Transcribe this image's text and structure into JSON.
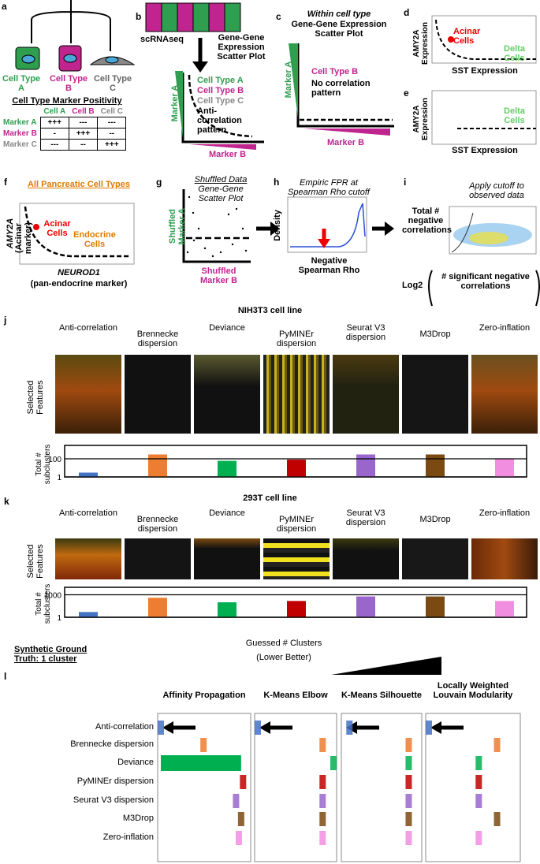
{
  "methods": [
    "Anti-correlation",
    "Brennecke dispersion",
    "Deviance",
    "PyMINEr dispersion",
    "Seurat V3 dispersion",
    "M3Drop",
    "Zero-inflation"
  ],
  "method_colors": [
    "#4472c4",
    "#ed7d31",
    "#00b050",
    "#c00000",
    "#9966cc",
    "#7b4a12",
    "#f28ee0"
  ],
  "panels": {
    "a": {
      "letter": "a",
      "types": [
        "Cell Type A",
        "Cell Type B",
        "Cell Type C"
      ],
      "table_title": "Cell Type Marker Positivity",
      "columns": [
        "Cell A",
        "Cell B",
        "Cell C"
      ],
      "rows": [
        {
          "label": "Marker A",
          "cells": [
            "+++",
            "---",
            "---"
          ]
        },
        {
          "label": "Marker B",
          "cells": [
            "-",
            "+++",
            "--"
          ]
        },
        {
          "label": "Marker C",
          "cells": [
            "---",
            "--",
            "+++"
          ]
        }
      ]
    },
    "b": {
      "letter": "b",
      "method": "scRNAseq",
      "title": "Gene-Gene Expression Scatter Plot",
      "legend": [
        "Cell Type A",
        "Cell Type B",
        "Cell Type C",
        "Anti-correlation pattern"
      ],
      "y_label": "Marker A",
      "x_label": "Marker B"
    },
    "c": {
      "letter": "c",
      "subtitle": "Within cell type",
      "title": "Gene-Gene Expression Scatter Plot",
      "legend": [
        "Cell Type B",
        "No correlation pattern"
      ],
      "y_label": "Marker A",
      "x_label": "Marker B"
    },
    "d": {
      "letter": "d",
      "y_label": "AMY2A Expression",
      "x_label": "SST Expression",
      "labels": [
        "Acinar Cells",
        "Delta Cells"
      ]
    },
    "e": {
      "letter": "e",
      "y_label": "AMY2A Expression",
      "x_label": "SST Expression",
      "labels": [
        "Delta Cells"
      ]
    },
    "f": {
      "letter": "f",
      "title": "All Pancreatic Cell Types",
      "y_label": "AMY2A",
      "y_sub": "(Acinar marker)",
      "x_label": "NEUROD1",
      "x_sub": "(pan-endocrine marker)",
      "labels": [
        "Acinar Cells",
        "Endocrine Cells"
      ]
    },
    "g": {
      "letter": "g",
      "title": "Shuffled Data",
      "subtitle": "Gene-Gene Scatter Plot",
      "y_label": "Shuffled Marker A",
      "x_label": "Shuffled Marker B"
    },
    "h": {
      "letter": "h",
      "title": "Empiric FPR at Spearman Rho cutoff",
      "y_label": "Density",
      "x_label": "Negative Spearman Rho"
    },
    "i": {
      "letter": "i",
      "annotation": "Apply cutoff to observed data",
      "y_label": "Total # negative correlations",
      "x_prefix": "Log2",
      "x_label": "# significant negative correlations"
    },
    "j": {
      "letter": "j",
      "title": "NIH3T3 cell line",
      "heatmap_label": "Selected Features",
      "chart": {
        "type": "bar",
        "y_label": "Total # subclusters",
        "log_scale": true,
        "ylim": [
          1,
          3000
        ],
        "yticks": [
          1,
          100
        ],
        "values": [
          3,
          300,
          60,
          80,
          300,
          300,
          100
        ]
      }
    },
    "k": {
      "letter": "k",
      "title": "293T cell line",
      "heatmap_label": "Selected Features",
      "chart": {
        "type": "bar",
        "y_label": "Total # subclusters",
        "log_scale": true,
        "ylim": [
          1,
          10000
        ],
        "yticks": [
          1,
          1000
        ],
        "values": [
          5,
          400,
          100,
          150,
          600,
          600,
          150
        ]
      }
    },
    "l": {
      "letter": "l",
      "ground_truth": "Synthetic Ground Truth: 1 cluster",
      "axis_title": "Guessed # Clusters",
      "axis_subtitle": "(Lower Better)",
      "subplots": [
        {
          "type": "strip",
          "title": "Affinity Propagation",
          "log_scale": true,
          "xlim": [
            1,
            1000
          ],
          "values": [
            1,
            30,
            600,
            700,
            400,
            600,
            500
          ]
        },
        {
          "type": "strip",
          "title": "K-Means Elbow",
          "log_scale": false,
          "xlim": [
            1,
            8
          ],
          "values": [
            1,
            7,
            8,
            7,
            7,
            7,
            7
          ]
        },
        {
          "type": "strip",
          "title": "K-Means Silhouette",
          "log_scale": false,
          "xlim": [
            1,
            16
          ],
          "values": [
            2,
            14,
            14,
            14,
            14,
            14,
            14
          ]
        },
        {
          "type": "strip",
          "title": "Locally Weighted Louvain Modularity",
          "log_scale": true,
          "xlim": [
            1,
            200
          ],
          "values": [
            1,
            60,
            20,
            20,
            20,
            60,
            20
          ]
        }
      ]
    }
  }
}
